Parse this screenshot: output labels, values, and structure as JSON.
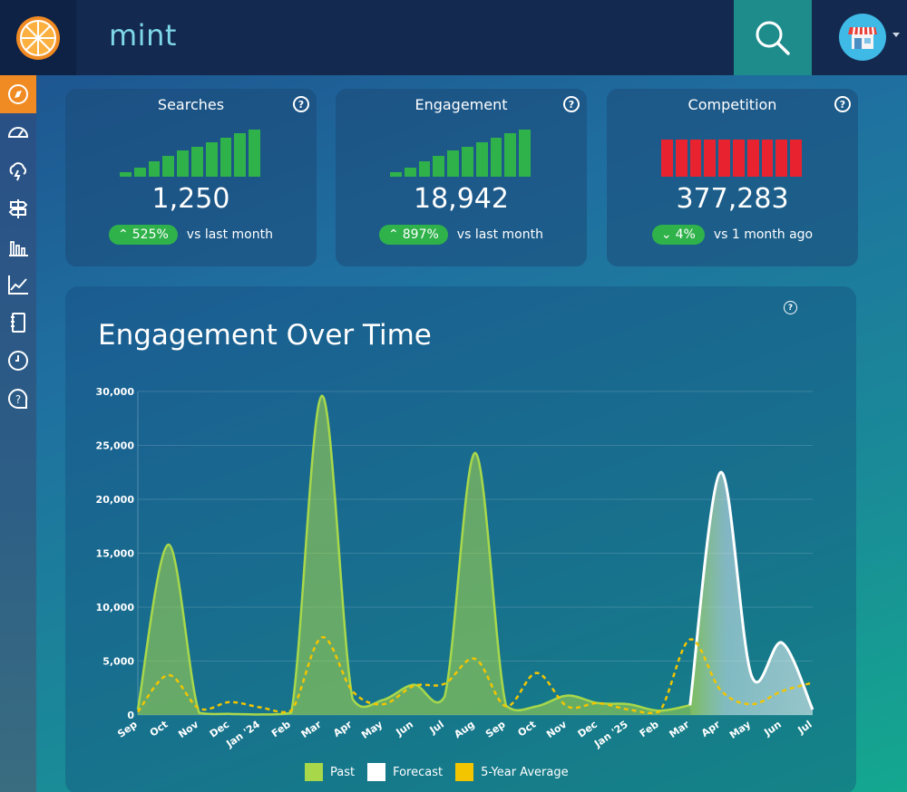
{
  "app": {
    "name": "mint"
  },
  "icons": {
    "logo": "orange-slice-icon",
    "search": "search-icon",
    "avatar": "storefront-icon",
    "sidebar": [
      "compass-icon",
      "speedometer-icon",
      "cloud-bolt-icon",
      "signpost-icon",
      "bar-chart-icon",
      "line-chart-icon",
      "notebook-icon",
      "clock-icon",
      "help-bubble-icon"
    ]
  },
  "cards": [
    {
      "title": "Searches",
      "value": "1,250",
      "change": "525%",
      "direction": "up",
      "compare": "vs last month",
      "bar_color": "#2fb24a",
      "bar_levels": [
        0.1,
        0.2,
        0.33,
        0.45,
        0.55,
        0.64,
        0.73,
        0.82,
        0.92,
        1.0
      ]
    },
    {
      "title": "Engagement",
      "value": "18,942",
      "change": "897%",
      "direction": "up",
      "compare": "vs last month",
      "bar_color": "#2fb24a",
      "bar_levels": [
        0.1,
        0.2,
        0.33,
        0.45,
        0.55,
        0.64,
        0.73,
        0.82,
        0.92,
        1.0
      ]
    },
    {
      "title": "Competition",
      "value": "377,283",
      "change": "4%",
      "direction": "down",
      "compare": "vs 1 month ago",
      "bar_color": "#e8232f",
      "bar_levels": [
        0.78,
        0.78,
        0.78,
        0.78,
        0.78,
        0.78,
        0.78,
        0.78,
        0.78,
        0.78
      ]
    }
  ],
  "chart_title": "Engagement Over Time",
  "chart_data": {
    "type": "area",
    "title": "Engagement Over Time",
    "ylim": [
      0,
      30000
    ],
    "yticks": [
      "0",
      "5,000",
      "10,000",
      "15,000",
      "20,000",
      "25,000",
      "30,000"
    ],
    "x": [
      "Sep",
      "Oct",
      "Nov",
      "Dec",
      "Jan '24",
      "Feb",
      "Mar",
      "Apr",
      "May",
      "Jun",
      "Jul",
      "Aug",
      "Sep",
      "Oct",
      "Nov",
      "Dec",
      "Jan '25",
      "Feb",
      "Mar",
      "Apr",
      "May",
      "Jun",
      "Jul"
    ],
    "grid": true,
    "legend": "bottom",
    "series": [
      {
        "name": "Past",
        "color": "#a8d84a",
        "values": [
          500,
          15800,
          200,
          100,
          50,
          200,
          29600,
          1500,
          1400,
          2800,
          1700,
          24300,
          900,
          800,
          1800,
          1100,
          1000,
          400,
          900,
          null,
          null,
          null,
          null
        ]
      },
      {
        "name": "Forecast",
        "color": "#ffffff",
        "values": [
          null,
          null,
          null,
          null,
          null,
          null,
          null,
          null,
          null,
          null,
          null,
          null,
          null,
          null,
          null,
          null,
          null,
          null,
          900,
          22500,
          3700,
          6700,
          500
        ]
      },
      {
        "name": "5-Year Average",
        "color": "#f2c500",
        "values": [
          300,
          3700,
          600,
          1200,
          700,
          400,
          7200,
          2200,
          1000,
          2700,
          2900,
          5200,
          800,
          3900,
          800,
          1100,
          500,
          300,
          7000,
          2300,
          1000,
          2200,
          3000
        ]
      }
    ]
  }
}
